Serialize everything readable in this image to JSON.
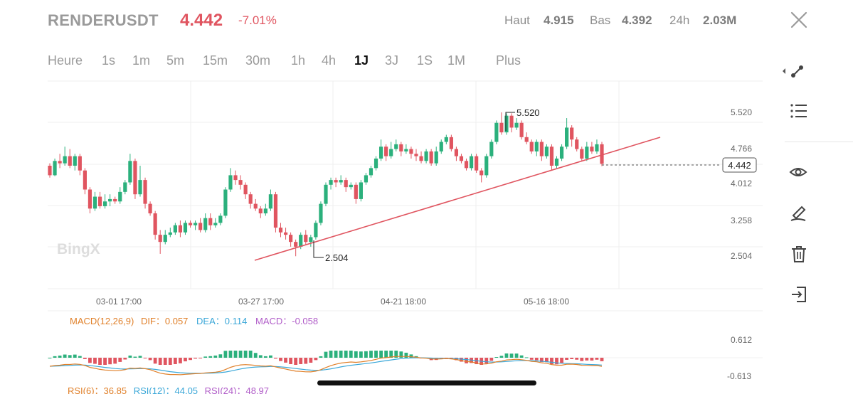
{
  "header": {
    "symbol": "RENDERUSDT",
    "price": "4.442",
    "change": "-7.01%",
    "high_label": "Haut",
    "high_value": "4.915",
    "low_label": "Bas",
    "low_value": "4.392",
    "vol_label": "24h",
    "vol_value": "2.03M"
  },
  "timeframes": {
    "items": [
      "Heure",
      "1s",
      "1m",
      "5m",
      "15m",
      "30m",
      "1h",
      "4h",
      "1J",
      "3J",
      "1S",
      "1M",
      "Plus"
    ],
    "active": "1J"
  },
  "main_chart": {
    "watermark": "BingX",
    "current_price": "4.442",
    "price_ticks": [
      "5.520",
      "4.766",
      "4.012",
      "3.258",
      "2.504"
    ],
    "date_ticks": [
      "03-01 17:00",
      "03-27 17:00",
      "04-21 18:00",
      "05-16 18:00"
    ],
    "high_marker": "5.520",
    "low_marker": "2.504"
  },
  "macd": {
    "label": "MACD(12,26,9)",
    "dif": "DIF：0.057",
    "dea": "DEA：0.114",
    "macd": "MACD：-0.058",
    "ticks": [
      "0.612",
      "-0.613"
    ]
  },
  "rsi": {
    "r6": "RSI(6)：36.85",
    "r12": "RSI(12)：44.05",
    "r24": "RSI(24)：48.97"
  },
  "colors": {
    "up": "#2bb07c",
    "down": "#e05560",
    "dif": "#e0802a",
    "dea": "#3aa7d8",
    "macd": "#b05cc8"
  },
  "chart_data": {
    "type": "candlestick",
    "ylim": [
      2.2,
      6.2
    ],
    "candles": [
      [
        4.4,
        4.2,
        4.45,
        4.15
      ],
      [
        4.2,
        4.5,
        4.55,
        4.18
      ],
      [
        4.5,
        4.45,
        4.65,
        4.35
      ],
      [
        4.45,
        4.6,
        4.8,
        4.4
      ],
      [
        4.6,
        4.4,
        4.75,
        4.35
      ],
      [
        4.4,
        4.6,
        4.65,
        4.3
      ],
      [
        4.6,
        4.3,
        4.65,
        4.2
      ],
      [
        4.3,
        3.9,
        4.35,
        3.8
      ],
      [
        3.9,
        3.5,
        3.95,
        3.4
      ],
      [
        3.5,
        3.75,
        3.85,
        3.45
      ],
      [
        3.75,
        3.55,
        3.85,
        3.5
      ],
      [
        3.55,
        3.65,
        3.8,
        3.5
      ],
      [
        3.65,
        3.7,
        3.8,
        3.55
      ],
      [
        3.7,
        3.65,
        3.75,
        3.6
      ],
      [
        3.65,
        3.85,
        3.95,
        3.6
      ],
      [
        3.85,
        4.05,
        4.1,
        3.8
      ],
      [
        4.05,
        4.5,
        4.65,
        4.0
      ],
      [
        4.5,
        3.8,
        4.55,
        3.7
      ],
      [
        3.8,
        4.1,
        4.4,
        3.75
      ],
      [
        4.1,
        3.6,
        4.15,
        3.5
      ],
      [
        3.6,
        3.4,
        3.65,
        3.35
      ],
      [
        3.4,
        2.95,
        3.45,
        2.85
      ],
      [
        2.95,
        2.8,
        3.05,
        2.55
      ],
      [
        2.8,
        2.95,
        3.05,
        2.75
      ],
      [
        2.95,
        3.0,
        3.1,
        2.9
      ],
      [
        3.0,
        3.15,
        3.2,
        2.95
      ],
      [
        3.15,
        3.0,
        3.25,
        2.9
      ],
      [
        3.0,
        3.2,
        3.25,
        2.95
      ],
      [
        3.2,
        3.15,
        3.25,
        3.1
      ],
      [
        3.15,
        3.2,
        3.25,
        3.05
      ],
      [
        3.2,
        3.05,
        3.3,
        3.0
      ],
      [
        3.05,
        3.3,
        3.4,
        3.0
      ],
      [
        3.3,
        3.15,
        3.4,
        3.05
      ],
      [
        3.15,
        3.2,
        3.3,
        3.1
      ],
      [
        3.2,
        3.35,
        3.4,
        3.15
      ],
      [
        3.35,
        3.9,
        3.95,
        3.3
      ],
      [
        3.9,
        4.2,
        4.35,
        3.85
      ],
      [
        4.2,
        4.1,
        4.3,
        4.0
      ],
      [
        4.1,
        4.0,
        4.2,
        3.9
      ],
      [
        4.0,
        3.8,
        4.05,
        3.7
      ],
      [
        3.8,
        3.6,
        3.85,
        3.5
      ],
      [
        3.6,
        3.5,
        3.7,
        3.45
      ],
      [
        3.5,
        3.4,
        3.55,
        3.3
      ],
      [
        3.4,
        3.5,
        3.6,
        3.35
      ],
      [
        3.5,
        3.8,
        3.9,
        3.45
      ],
      [
        3.8,
        3.1,
        3.85,
        3.0
      ],
      [
        3.1,
        3.0,
        3.2,
        2.9
      ],
      [
        3.0,
        2.95,
        3.1,
        2.85
      ],
      [
        2.95,
        2.8,
        3.0,
        2.7
      ],
      [
        2.8,
        2.7,
        2.85,
        2.5
      ],
      [
        2.7,
        2.95,
        3.0,
        2.65
      ],
      [
        2.95,
        2.8,
        3.05,
        2.75
      ],
      [
        2.8,
        2.9,
        2.95,
        2.7
      ],
      [
        2.9,
        3.2,
        3.25,
        2.85
      ],
      [
        3.2,
        3.6,
        3.65,
        3.15
      ],
      [
        3.6,
        4.0,
        4.05,
        3.55
      ],
      [
        4.0,
        4.1,
        4.15,
        3.9
      ],
      [
        4.1,
        4.05,
        4.15,
        3.95
      ],
      [
        4.05,
        4.1,
        4.2,
        4.0
      ],
      [
        4.1,
        3.95,
        4.15,
        3.85
      ],
      [
        3.95,
        4.0,
        4.05,
        3.9
      ],
      [
        4.0,
        3.7,
        4.05,
        3.6
      ],
      [
        3.7,
        4.05,
        4.1,
        3.65
      ],
      [
        4.05,
        4.2,
        4.25,
        4.0
      ],
      [
        4.2,
        4.35,
        4.4,
        4.15
      ],
      [
        4.35,
        4.55,
        4.6,
        4.3
      ],
      [
        4.55,
        4.8,
        4.95,
        4.5
      ],
      [
        4.8,
        4.6,
        4.85,
        4.5
      ],
      [
        4.6,
        4.75,
        4.9,
        4.55
      ],
      [
        4.75,
        4.85,
        4.95,
        4.7
      ],
      [
        4.85,
        4.7,
        4.9,
        4.6
      ],
      [
        4.7,
        4.75,
        4.85,
        4.65
      ],
      [
        4.75,
        4.65,
        4.8,
        4.55
      ],
      [
        4.65,
        4.6,
        4.75,
        4.5
      ],
      [
        4.6,
        4.5,
        4.7,
        4.45
      ],
      [
        4.5,
        4.7,
        4.75,
        4.45
      ],
      [
        4.7,
        4.45,
        4.75,
        4.4
      ],
      [
        4.45,
        4.7,
        4.8,
        4.4
      ],
      [
        4.7,
        4.9,
        4.95,
        4.65
      ],
      [
        4.9,
        5.0,
        5.05,
        4.85
      ],
      [
        5.0,
        4.75,
        5.05,
        4.7
      ],
      [
        4.75,
        4.6,
        4.8,
        4.5
      ],
      [
        4.6,
        4.5,
        4.65,
        4.45
      ],
      [
        4.5,
        4.35,
        4.55,
        4.3
      ],
      [
        4.35,
        4.6,
        4.65,
        4.3
      ],
      [
        4.6,
        4.3,
        4.65,
        4.25
      ],
      [
        4.3,
        4.2,
        4.35,
        4.05
      ],
      [
        4.2,
        4.6,
        4.65,
        4.15
      ],
      [
        4.6,
        4.9,
        4.95,
        4.55
      ],
      [
        4.9,
        5.3,
        5.35,
        4.85
      ],
      [
        5.3,
        5.1,
        5.52,
        5.05
      ],
      [
        5.1,
        5.45,
        5.5,
        5.05
      ],
      [
        5.45,
        5.2,
        5.5,
        5.1
      ],
      [
        5.2,
        5.3,
        5.4,
        5.15
      ],
      [
        5.3,
        5.0,
        5.35,
        4.95
      ],
      [
        5.0,
        4.9,
        5.1,
        4.85
      ],
      [
        4.9,
        4.7,
        4.95,
        4.65
      ],
      [
        4.7,
        4.9,
        4.95,
        4.6
      ],
      [
        4.9,
        4.6,
        4.95,
        4.5
      ],
      [
        4.6,
        4.8,
        4.85,
        4.55
      ],
      [
        4.8,
        4.4,
        4.85,
        4.3
      ],
      [
        4.4,
        4.55,
        4.6,
        4.35
      ],
      [
        4.55,
        4.8,
        4.85,
        4.5
      ],
      [
        4.8,
        5.2,
        5.4,
        4.75
      ],
      [
        5.2,
        4.95,
        5.25,
        4.8
      ],
      [
        4.95,
        4.75,
        5.0,
        4.7
      ],
      [
        4.75,
        4.55,
        4.8,
        4.5
      ],
      [
        4.55,
        4.8,
        4.9,
        4.5
      ],
      [
        4.8,
        4.7,
        4.9,
        4.65
      ],
      [
        4.7,
        4.85,
        4.95,
        4.65
      ],
      [
        4.85,
        4.44,
        4.9,
        4.39
      ]
    ]
  }
}
